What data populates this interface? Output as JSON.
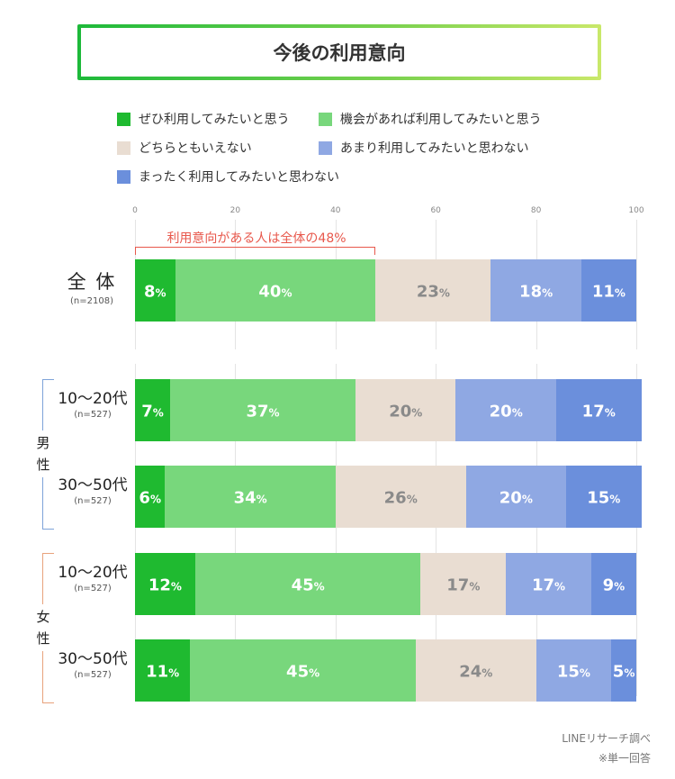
{
  "title": "今後の利用意向",
  "chart_data": {
    "type": "bar",
    "orientation": "horizontal-stacked",
    "xlim": [
      0,
      100
    ],
    "xticks": [
      "0",
      "20",
      "40",
      "60",
      "80",
      "100"
    ],
    "legend": [
      {
        "name": "ぜひ利用してみたいと思う",
        "color": "#1fba30"
      },
      {
        "name": "機会があれば利用してみたいと思う",
        "color": "#78d77c"
      },
      {
        "name": "どちらともいえない",
        "color": "#e9ddd2"
      },
      {
        "name": "あまり利用してみたいと思わない",
        "color": "#8fa8e3"
      },
      {
        "name": "まったく利用してみたいと思わない",
        "color": "#6b8fdc"
      }
    ],
    "annotation": "利用意向がある人は全体の48%",
    "pct_suffix": "%",
    "groups": [
      {
        "label": "",
        "bracket_color": ""
      },
      {
        "label": "男性",
        "bracket_color": "#7ea3d9"
      },
      {
        "label": "女性",
        "bracket_color": "#e8a27c"
      }
    ],
    "rows": [
      {
        "title": "全 体",
        "n": "(n=2108)",
        "values": [
          8,
          40,
          23,
          18,
          11
        ]
      },
      {
        "title": "10～20代",
        "n": "(n=527)",
        "values": [
          7,
          37,
          20,
          20,
          17
        ]
      },
      {
        "title": "30～50代",
        "n": "(n=527)",
        "values": [
          6,
          34,
          26,
          20,
          15
        ]
      },
      {
        "title": "10～20代",
        "n": "(n=527)",
        "values": [
          12,
          45,
          17,
          17,
          9
        ]
      },
      {
        "title": "30～50代",
        "n": "(n=527)",
        "values": [
          11,
          45,
          24,
          15,
          5
        ]
      }
    ]
  },
  "source": "LINEリサーチ調べ",
  "note": "※単一回答"
}
